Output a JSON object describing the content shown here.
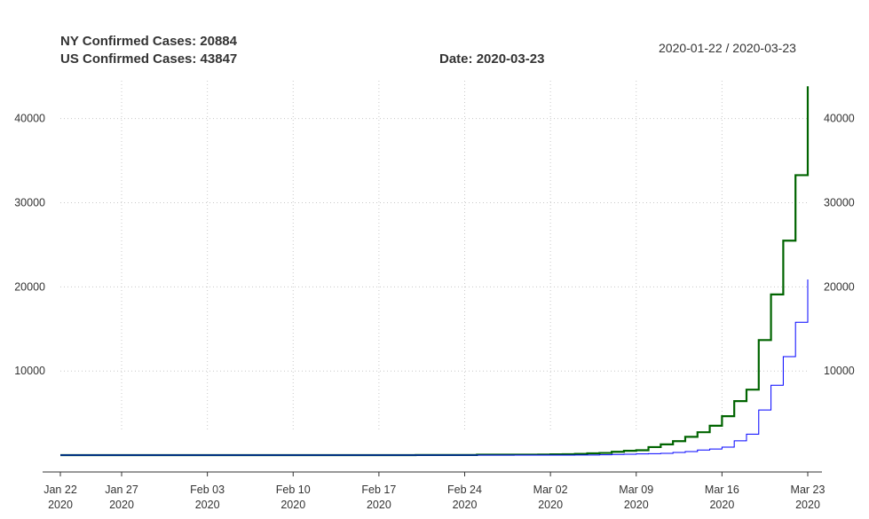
{
  "header": {
    "ny_label": "NY Confirmed Cases:",
    "ny_value": "20884",
    "us_label": "US Confirmed Cases:",
    "us_value": "43847",
    "date_label": "Date:",
    "date_value": "2020-03-23",
    "range": "2020-01-22 / 2020-03-23"
  },
  "chart_data": {
    "type": "line",
    "line_style": "step",
    "title": "",
    "xlabel": "",
    "ylabel": "",
    "ylim": [
      -2000,
      44500
    ],
    "y_ticks": [
      10000,
      20000,
      30000,
      40000
    ],
    "y_axis_both_sides": true,
    "grid": true,
    "x_ticks": [
      {
        "date": "2020-01-22",
        "label": "Jan 22",
        "year": "2020"
      },
      {
        "date": "2020-01-27",
        "label": "Jan 27",
        "year": "2020"
      },
      {
        "date": "2020-02-03",
        "label": "Feb 03",
        "year": "2020"
      },
      {
        "date": "2020-02-10",
        "label": "Feb 10",
        "year": "2020"
      },
      {
        "date": "2020-02-17",
        "label": "Feb 17",
        "year": "2020"
      },
      {
        "date": "2020-02-24",
        "label": "Feb 24",
        "year": "2020"
      },
      {
        "date": "2020-03-02",
        "label": "Mar 02",
        "year": "2020"
      },
      {
        "date": "2020-03-09",
        "label": "Mar 09",
        "year": "2020"
      },
      {
        "date": "2020-03-16",
        "label": "Mar 16",
        "year": "2020"
      },
      {
        "date": "2020-03-23",
        "label": "Mar 23",
        "year": "2020"
      }
    ],
    "series": [
      {
        "name": "US",
        "color": "#006400",
        "points": [
          [
            "2020-01-22",
            1
          ],
          [
            "2020-02-20",
            15
          ],
          [
            "2020-02-25",
            53
          ],
          [
            "2020-02-28",
            62
          ],
          [
            "2020-03-01",
            74
          ],
          [
            "2020-03-02",
            98
          ],
          [
            "2020-03-03",
            118
          ],
          [
            "2020-03-04",
            149
          ],
          [
            "2020-03-05",
            217
          ],
          [
            "2020-03-06",
            262
          ],
          [
            "2020-03-07",
            402
          ],
          [
            "2020-03-08",
            518
          ],
          [
            "2020-03-09",
            583
          ],
          [
            "2020-03-10",
            959
          ],
          [
            "2020-03-11",
            1281
          ],
          [
            "2020-03-12",
            1663
          ],
          [
            "2020-03-13",
            2179
          ],
          [
            "2020-03-14",
            2726
          ],
          [
            "2020-03-15",
            3499
          ],
          [
            "2020-03-16",
            4632
          ],
          [
            "2020-03-17",
            6421
          ],
          [
            "2020-03-18",
            7786
          ],
          [
            "2020-03-19",
            13680
          ],
          [
            "2020-03-20",
            19101
          ],
          [
            "2020-03-21",
            25493
          ],
          [
            "2020-03-22",
            33276
          ],
          [
            "2020-03-23",
            43847
          ]
        ]
      },
      {
        "name": "NY",
        "color": "#0000ff",
        "points": [
          [
            "2020-01-22",
            0
          ],
          [
            "2020-03-01",
            1
          ],
          [
            "2020-03-03",
            2
          ],
          [
            "2020-03-04",
            11
          ],
          [
            "2020-03-05",
            22
          ],
          [
            "2020-03-06",
            44
          ],
          [
            "2020-03-07",
            89
          ],
          [
            "2020-03-08",
            106
          ],
          [
            "2020-03-09",
            142
          ],
          [
            "2020-03-10",
            173
          ],
          [
            "2020-03-11",
            217
          ],
          [
            "2020-03-12",
            326
          ],
          [
            "2020-03-13",
            421
          ],
          [
            "2020-03-14",
            610
          ],
          [
            "2020-03-15",
            732
          ],
          [
            "2020-03-16",
            950
          ],
          [
            "2020-03-17",
            1700
          ],
          [
            "2020-03-18",
            2495
          ],
          [
            "2020-03-19",
            5365
          ],
          [
            "2020-03-20",
            8310
          ],
          [
            "2020-03-21",
            11710
          ],
          [
            "2020-03-22",
            15793
          ],
          [
            "2020-03-23",
            20884
          ]
        ]
      }
    ]
  }
}
